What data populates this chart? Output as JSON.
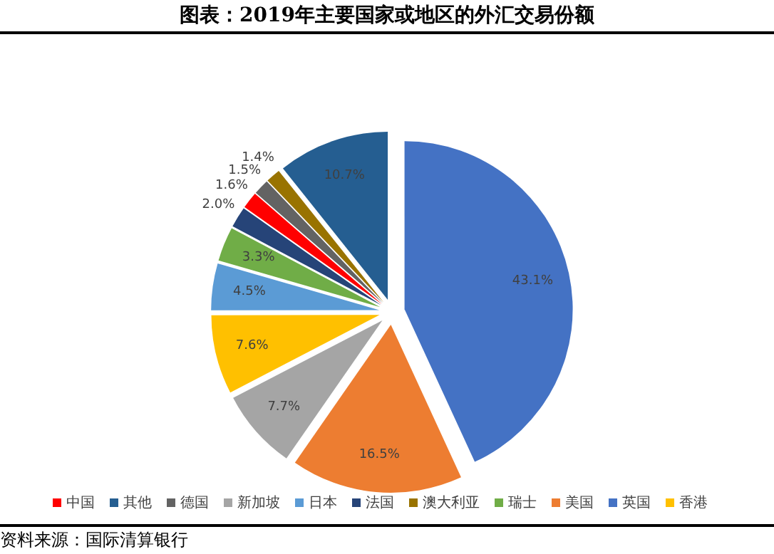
{
  "chart_data": {
    "type": "pie",
    "title": "图表：2019年主要国家或地区的外汇交易份额",
    "categories": [
      "英国",
      "美国",
      "新加坡",
      "香港",
      "日本",
      "瑞士",
      "法国",
      "中国",
      "德国",
      "澳大利亚",
      "其他"
    ],
    "values": [
      43.1,
      16.5,
      7.7,
      7.6,
      4.5,
      3.3,
      2.0,
      1.6,
      1.5,
      1.4,
      10.7
    ],
    "value_labels": [
      "43.1%",
      "16.5%",
      "7.7%",
      "7.6%",
      "4.5%",
      "3.3%",
      "2.0%",
      "1.6%",
      "1.5%",
      "1.4%",
      "10.7%"
    ],
    "colors": [
      "#4472c4",
      "#ed7d31",
      "#a5a5a5",
      "#ffc000",
      "#5b9bd5",
      "#70ad47",
      "#264478",
      "#ff0000",
      "#636363",
      "#997300",
      "#255e91"
    ],
    "legend": "bottom",
    "annotations": [
      "资料来源：国际清算银行"
    ]
  }
}
